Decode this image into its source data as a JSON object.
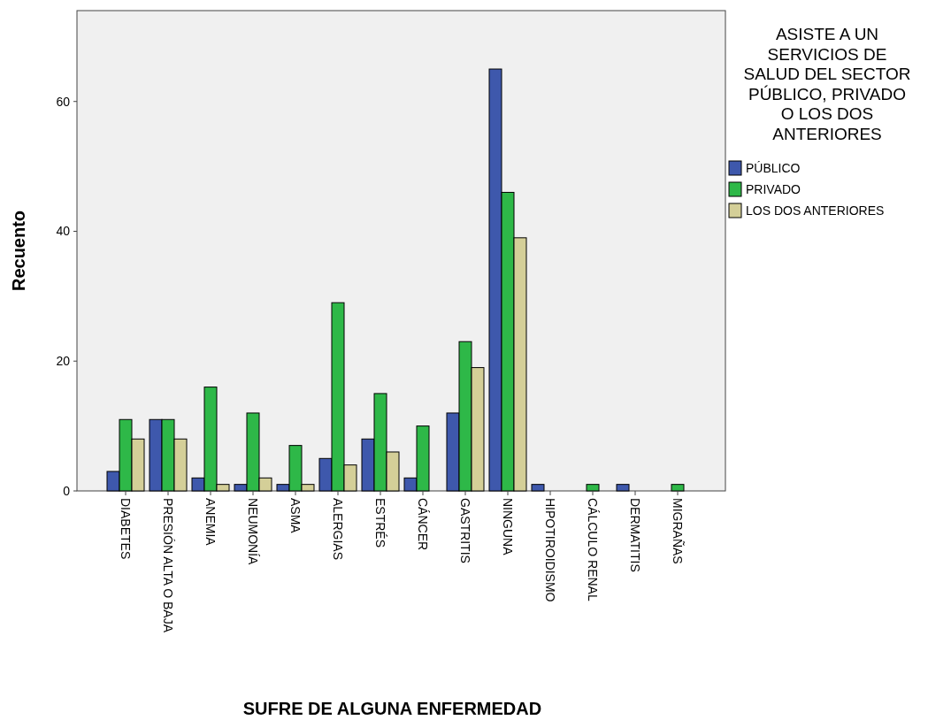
{
  "chart_data": {
    "type": "bar",
    "xlabel": "SUFRE DE ALGUNA ENFERMEDAD",
    "ylabel": "Recuento",
    "legend_title": "ASISTE A UN SERVICIOS DE SALUD DEL SECTOR PÚBLICO, PRIVADO O LOS DOS ANTERIORES",
    "legend": "top right",
    "grid": false,
    "categories": [
      "DIABETES",
      "PRESIÓN ALTA O BAJA",
      "ANEMIA",
      "NEUMONÍA",
      "ASMA",
      "ALERGIAS",
      "ESTRÉS",
      "CÁNCER",
      "GASTRITIS",
      "NINGUNA",
      "HIPOTIROIDISMO",
      "CÁLCULO RENAL",
      "DERMATITIS",
      "MIGRAÑAS"
    ],
    "ylim": [
      0,
      74
    ],
    "yticks": [
      0,
      20,
      40,
      60
    ],
    "series": [
      {
        "name": "PÚBLICO",
        "color": "#3e58ac",
        "values": [
          3,
          11,
          2,
          1,
          1,
          5,
          8,
          2,
          12,
          65,
          1,
          0,
          1,
          0
        ]
      },
      {
        "name": "PRIVADO",
        "color": "#2eb848",
        "values": [
          11,
          11,
          16,
          12,
          7,
          29,
          15,
          10,
          23,
          46,
          0,
          1,
          0,
          1
        ]
      },
      {
        "name": "LOS DOS ANTERIORES",
        "color": "#d4cf98",
        "values": [
          8,
          8,
          1,
          2,
          1,
          4,
          6,
          0,
          19,
          39,
          0,
          0,
          0,
          0
        ]
      }
    ]
  }
}
